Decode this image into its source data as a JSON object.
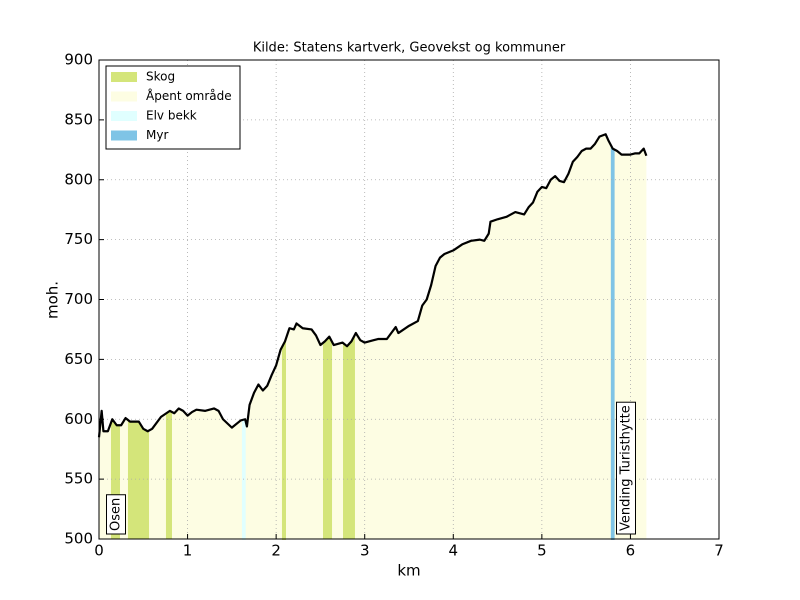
{
  "chart_data": {
    "type": "elevation-profile",
    "title": "Kilde: Statens kartverk, Geovekst og kommuner",
    "x_label": "km",
    "y_label": "moh.",
    "xlim": [
      0,
      7
    ],
    "ylim": [
      500,
      900
    ],
    "xticks": [
      0,
      1,
      2,
      3,
      4,
      5,
      6,
      7
    ],
    "yticks": [
      500,
      550,
      600,
      650,
      700,
      750,
      800,
      850,
      900
    ],
    "grid": true,
    "legend": "upper left",
    "line_color": "#000000",
    "x": [
      0,
      0.03,
      0.05,
      0.1,
      0.15,
      0.2,
      0.25,
      0.3,
      0.35,
      0.45,
      0.5,
      0.55,
      0.6,
      0.7,
      0.8,
      0.85,
      0.9,
      0.95,
      1.0,
      1.05,
      1.1,
      1.2,
      1.3,
      1.35,
      1.4,
      1.5,
      1.6,
      1.65,
      1.67,
      1.7,
      1.75,
      1.8,
      1.85,
      1.9,
      1.95,
      2.0,
      2.05,
      2.1,
      2.15,
      2.2,
      2.23,
      2.3,
      2.4,
      2.45,
      2.5,
      2.55,
      2.6,
      2.65,
      2.7,
      2.75,
      2.8,
      2.85,
      2.9,
      2.95,
      3.0,
      3.1,
      3.15,
      3.25,
      3.3,
      3.35,
      3.38,
      3.5,
      3.6,
      3.65,
      3.7,
      3.75,
      3.8,
      3.85,
      3.9,
      4.0,
      4.1,
      4.2,
      4.3,
      4.35,
      4.4,
      4.42,
      4.5,
      4.6,
      4.7,
      4.8,
      4.85,
      4.9,
      4.95,
      5.0,
      5.05,
      5.1,
      5.15,
      5.2,
      5.25,
      5.3,
      5.35,
      5.4,
      5.45,
      5.5,
      5.55,
      5.6,
      5.65,
      5.72,
      5.75,
      5.8,
      5.85,
      5.9,
      6.0,
      6.05,
      6.1,
      6.15,
      6.18
    ],
    "values": [
      585,
      607,
      590,
      590,
      600,
      595,
      595,
      601,
      598,
      598,
      592,
      590,
      592,
      602,
      607,
      605,
      609,
      607,
      603,
      606,
      608,
      607,
      609,
      607,
      600,
      593,
      599,
      600,
      594,
      612,
      622,
      629,
      624,
      628,
      637,
      645,
      658,
      665,
      676,
      675,
      680,
      676,
      675,
      670,
      662,
      665,
      669,
      662,
      663,
      664,
      661,
      665,
      672,
      666,
      664,
      666,
      667,
      667,
      672,
      677,
      672,
      678,
      682,
      695,
      700,
      712,
      728,
      735,
      738,
      741,
      746,
      749,
      750,
      749,
      755,
      765,
      767,
      769,
      773,
      771,
      777,
      781,
      790,
      794,
      793,
      800,
      803,
      799,
      798,
      805,
      815,
      819,
      824,
      826,
      826,
      830,
      836,
      838,
      833,
      826,
      824,
      821,
      821,
      822,
      822,
      826,
      820
    ],
    "zones": [
      {
        "name": "Åpent område",
        "color": "#fdfde3",
        "ranges": [
          [
            0,
            6.18
          ]
        ]
      },
      {
        "name": "Skog",
        "color": "#d4e57a",
        "ranges": [
          [
            0.135,
            0.237
          ],
          [
            0.327,
            0.565
          ],
          [
            0.756,
            0.824
          ],
          [
            2.077,
            2.1
          ],
          [
            2.529,
            2.631
          ],
          [
            2.755,
            2.89
          ]
        ]
      },
      {
        "name": "Elv bekk",
        "color": "#e0ffff",
        "ranges": [
          [
            1.625,
            1.645
          ]
        ]
      },
      {
        "name": "Myr",
        "color": "#7fc4e6",
        "ranges": [
          [
            5.79,
            5.81
          ]
        ]
      }
    ],
    "legend_order": [
      1,
      0,
      2,
      3
    ],
    "annotations": [
      "Osen",
      "Vending Turisthytte"
    ]
  }
}
